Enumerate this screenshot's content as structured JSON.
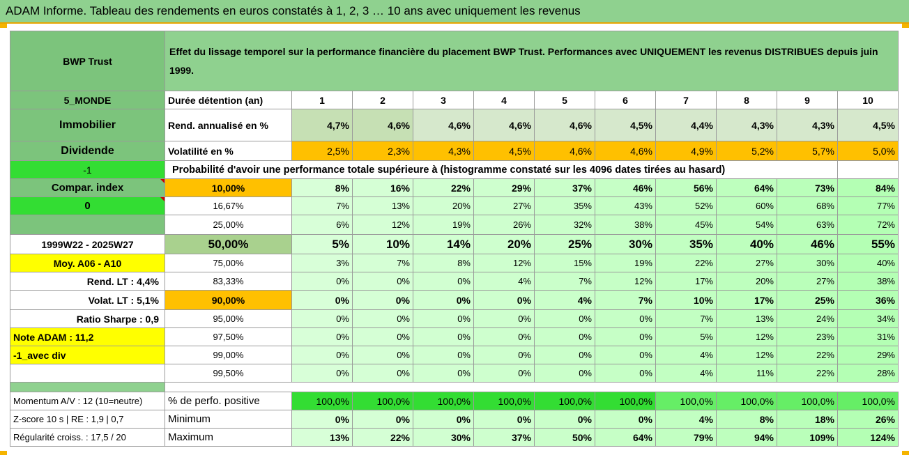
{
  "title": "ADAM Informe. Tableau des rendements en euros constatés à 1, 2, 3 … 10 ans avec uniquement les revenus",
  "header": {
    "fund": "BWP Trust",
    "description": "Effet du lissage temporel sur la performance financière du placement BWP Trust. Performances avec UNIQUEMENT les revenus DISTRIBUES depuis juin 1999."
  },
  "left": {
    "category": "5_MONDE",
    "type": "Immobilier",
    "mode": "Dividende",
    "index_code": "-1",
    "compar_label": "Compar. index",
    "compar_value": "0",
    "period": "1999W22 - 2025W27",
    "moy": "Moy. A06 - A10",
    "rend_lt": "Rend. LT :    4,4%",
    "volat_lt": "Volat. LT :   5,1%",
    "sharpe": "Ratio Sharpe :    0,9",
    "note": "Note ADAM : 11,2",
    "avec_div": "-1_avec div",
    "momentum": "Momentum A/V : 12 (10=neutre)",
    "zscore": "Z-score 10 s | RE : 1,9 | 0,7",
    "regularite": "Régularité croiss. : 17,5 / 20"
  },
  "rows": {
    "duree_label": "Durée détention (an)",
    "years": [
      "1",
      "2",
      "3",
      "4",
      "5",
      "6",
      "7",
      "8",
      "9",
      "10"
    ],
    "rend_label": "Rend. annualisé en %",
    "rend": [
      "4,7%",
      "4,6%",
      "4,6%",
      "4,6%",
      "4,6%",
      "4,5%",
      "4,4%",
      "4,3%",
      "4,3%",
      "4,5%"
    ],
    "vol_label": "Volatilité en %",
    "vol": [
      "2,5%",
      "2,3%",
      "4,3%",
      "4,5%",
      "4,6%",
      "4,6%",
      "4,9%",
      "5,2%",
      "5,7%",
      "5,0%"
    ],
    "prob_label": "Probabilité d'avoir une performance totale supérieure à (histogramme constaté sur les 4096 dates tirées au hasard)",
    "prob": [
      {
        "pct": "10,00%",
        "vals": [
          "8%",
          "16%",
          "22%",
          "29%",
          "37%",
          "46%",
          "56%",
          "64%",
          "73%",
          "84%"
        ]
      },
      {
        "pct": "16,67%",
        "vals": [
          "7%",
          "13%",
          "20%",
          "27%",
          "35%",
          "43%",
          "52%",
          "60%",
          "68%",
          "77%"
        ]
      },
      {
        "pct": "25,00%",
        "vals": [
          "6%",
          "12%",
          "19%",
          "26%",
          "32%",
          "38%",
          "45%",
          "54%",
          "63%",
          "72%"
        ]
      },
      {
        "pct": "50,00%",
        "vals": [
          "5%",
          "10%",
          "14%",
          "20%",
          "25%",
          "30%",
          "35%",
          "40%",
          "46%",
          "55%"
        ]
      },
      {
        "pct": "75,00%",
        "vals": [
          "3%",
          "7%",
          "8%",
          "12%",
          "15%",
          "19%",
          "22%",
          "27%",
          "30%",
          "40%"
        ]
      },
      {
        "pct": "83,33%",
        "vals": [
          "0%",
          "0%",
          "0%",
          "4%",
          "7%",
          "12%",
          "17%",
          "20%",
          "27%",
          "38%"
        ]
      },
      {
        "pct": "90,00%",
        "vals": [
          "0%",
          "0%",
          "0%",
          "0%",
          "4%",
          "7%",
          "10%",
          "17%",
          "25%",
          "36%"
        ]
      },
      {
        "pct": "95,00%",
        "vals": [
          "0%",
          "0%",
          "0%",
          "0%",
          "0%",
          "0%",
          "7%",
          "13%",
          "24%",
          "34%"
        ]
      },
      {
        "pct": "97,50%",
        "vals": [
          "0%",
          "0%",
          "0%",
          "0%",
          "0%",
          "0%",
          "5%",
          "12%",
          "23%",
          "31%"
        ]
      },
      {
        "pct": "99,00%",
        "vals": [
          "0%",
          "0%",
          "0%",
          "0%",
          "0%",
          "0%",
          "4%",
          "12%",
          "22%",
          "29%"
        ]
      },
      {
        "pct": "99,50%",
        "vals": [
          "0%",
          "0%",
          "0%",
          "0%",
          "0%",
          "0%",
          "4%",
          "11%",
          "22%",
          "28%"
        ]
      }
    ],
    "pos_label": "% de perfo. positive",
    "pos": [
      "100,0%",
      "100,0%",
      "100,0%",
      "100,0%",
      "100,0%",
      "100,0%",
      "100,0%",
      "100,0%",
      "100,0%",
      "100,0%"
    ],
    "min_label": "Minimum",
    "min": [
      "0%",
      "0%",
      "0%",
      "0%",
      "0%",
      "0%",
      "4%",
      "8%",
      "18%",
      "26%"
    ],
    "max_label": "Maximum",
    "max": [
      "13%",
      "22%",
      "30%",
      "37%",
      "50%",
      "64%",
      "79%",
      "94%",
      "109%",
      "124%"
    ]
  },
  "colors": {
    "header_green": "#8fd18f",
    "left_green": "#7cc47c",
    "orange": "#ffc000",
    "bright_green": "#33dd33",
    "yellow": "#ffff00",
    "red_text": "#e00000"
  }
}
